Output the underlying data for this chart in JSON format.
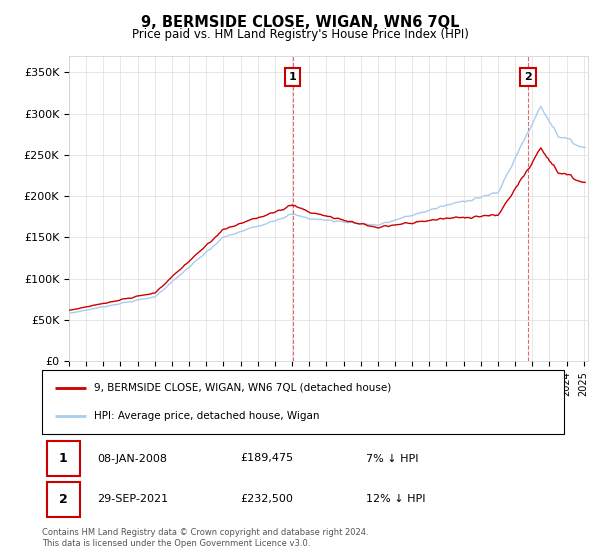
{
  "title": "9, BERMSIDE CLOSE, WIGAN, WN6 7QL",
  "subtitle": "Price paid vs. HM Land Registry's House Price Index (HPI)",
  "ylabel_ticks": [
    "£0",
    "£50K",
    "£100K",
    "£150K",
    "£200K",
    "£250K",
    "£300K",
    "£350K"
  ],
  "ytick_values": [
    0,
    50000,
    100000,
    150000,
    200000,
    250000,
    300000,
    350000
  ],
  "ylim": [
    0,
    370000
  ],
  "sale1_year": 2008.04,
  "sale1_price": 189475,
  "sale2_year": 2021.75,
  "sale2_price": 232500,
  "annotation1_date": "08-JAN-2008",
  "annotation1_price": "£189,475",
  "annotation1_pct": "7% ↓ HPI",
  "annotation2_date": "29-SEP-2021",
  "annotation2_price": "£232,500",
  "annotation2_pct": "12% ↓ HPI",
  "legend_line1": "9, BERMSIDE CLOSE, WIGAN, WN6 7QL (detached house)",
  "legend_line2": "HPI: Average price, detached house, Wigan",
  "footer": "Contains HM Land Registry data © Crown copyright and database right 2024.\nThis data is licensed under the Open Government Licence v3.0.",
  "hpi_color": "#aaccee",
  "sale_color": "#cc0000",
  "dashed_color": "#dd4444",
  "grid_color": "#dddddd",
  "box_bg": "#f5f5f5"
}
